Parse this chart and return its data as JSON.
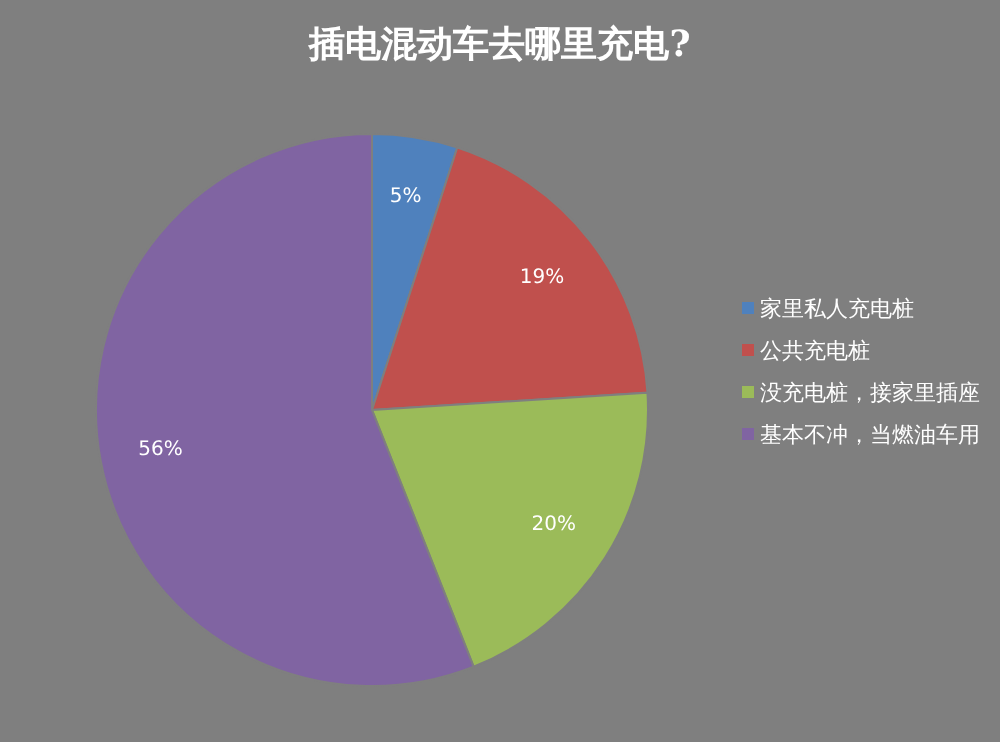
{
  "chart_data": {
    "type": "pie",
    "title": "插电混动车去哪里充电?",
    "categories": [
      "家里私人充电桩",
      "公共充电桩",
      "没充电桩，接家里插座",
      "基本不冲，当燃油车用"
    ],
    "values": [
      5,
      19,
      20,
      56
    ],
    "colors": [
      "#4f81bd",
      "#c0504d",
      "#9bbb59",
      "#8064a2"
    ],
    "value_labels": [
      "5%",
      "19%",
      "20%",
      "56%"
    ],
    "legend": "right"
  }
}
